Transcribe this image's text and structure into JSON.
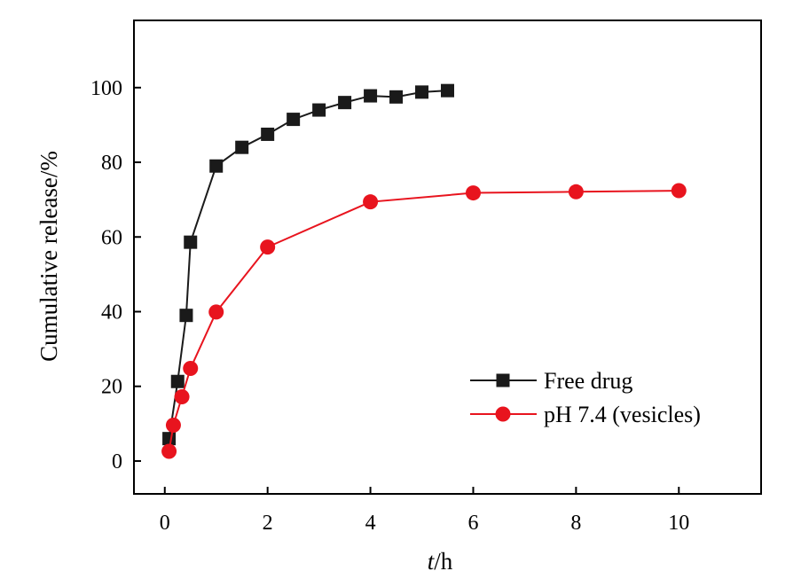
{
  "chart_data": {
    "type": "line",
    "title": "",
    "xlabel_italic": "t",
    "xlabel_unit": "/h",
    "ylabel": "Cumulative release/%",
    "xlim": [
      -0.6,
      11.6
    ],
    "ylim": [
      -8.8,
      118
    ],
    "xticks": [
      0,
      2,
      4,
      6,
      8,
      10
    ],
    "yticks": [
      0,
      20,
      40,
      60,
      80,
      100
    ],
    "grid": false,
    "legend_position": "bottom-right",
    "series": [
      {
        "name": "Free drug",
        "color": "#1a1a1a",
        "marker": "square",
        "x": [
          0.083,
          0.25,
          0.417,
          0.5,
          1,
          1.5,
          2,
          2.5,
          3,
          3.5,
          4,
          4.5,
          5,
          5.5
        ],
        "y": [
          6,
          21.3,
          39,
          58.6,
          79,
          84,
          87.5,
          91.5,
          94,
          96,
          97.8,
          97.5,
          98.8,
          99.2
        ]
      },
      {
        "name": "pH 7.4 (vesicles)",
        "color": "#e8141e",
        "marker": "circle",
        "x": [
          0.083,
          0.167,
          0.333,
          0.5,
          1,
          2,
          4,
          6,
          8,
          10
        ],
        "y": [
          2.6,
          9.6,
          17.2,
          24.8,
          39.9,
          57.3,
          69.4,
          71.8,
          72.1,
          72.4
        ]
      }
    ]
  }
}
